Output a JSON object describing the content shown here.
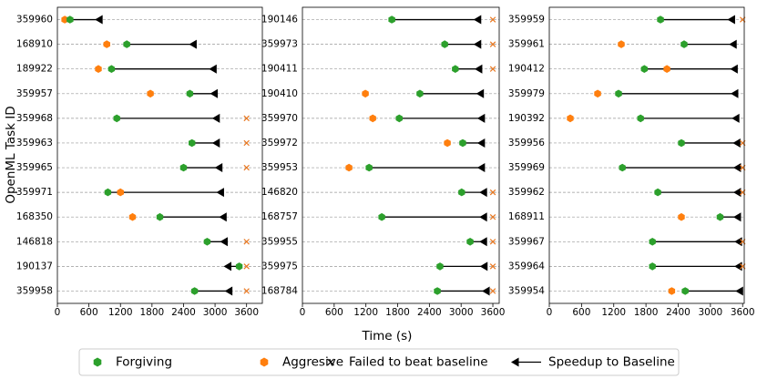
{
  "chart_data": {
    "type": "dumbbell",
    "xlabel": "Time (s)",
    "ylabel": "OpenML Task ID",
    "grid": true,
    "panels": [
      {
        "categories": [
          "359960",
          "168910",
          "189922",
          "359957",
          "359968",
          "359963",
          "359965",
          "359971",
          "168350",
          "146818",
          "190137",
          "359958"
        ],
        "xlim": [
          0,
          3900
        ],
        "xticks": [
          0,
          600,
          1200,
          1800,
          2400,
          3000,
          3600
        ]
      },
      {
        "categories": [
          "190146",
          "359973",
          "190411",
          "190410",
          "359970",
          "359972",
          "359953",
          "146820",
          "168757",
          "359955",
          "359975",
          "168784"
        ],
        "xlim": [
          0,
          3720
        ],
        "xticks": [
          0,
          600,
          1200,
          1800,
          2400,
          3000,
          3600
        ]
      },
      {
        "categories": [
          "359959",
          "359961",
          "190412",
          "359979",
          "190392",
          "359956",
          "359969",
          "359962",
          "168911",
          "359967",
          "359964",
          "359954"
        ],
        "xlim": [
          0,
          3630
        ],
        "xticks": [
          0,
          600,
          1200,
          1800,
          2400,
          3000,
          3600
        ]
      }
    ],
    "series": [
      {
        "name": "Forgiving",
        "color": "#2ca02c",
        "values": [
          [
            240,
            1320,
            1030,
            2520,
            1130,
            2560,
            2400,
            960,
            1950,
            2850,
            3460,
            2610
          ],
          [
            1690,
            2690,
            2890,
            2220,
            1830,
            3030,
            1260,
            3010,
            1500,
            3170,
            2600,
            2550
          ],
          [
            2070,
            2510,
            1770,
            1290,
            1700,
            2460,
            1360,
            2020,
            3180,
            1920,
            1920,
            2530
          ]
        ]
      },
      {
        "name": "Aggresive",
        "color": "#ff7f0e",
        "values": [
          [
            140,
            940,
            780,
            1770,
            null,
            null,
            null,
            1200,
            1430,
            null,
            null,
            null
          ],
          [
            null,
            null,
            null,
            1190,
            1330,
            2740,
            880,
            null,
            null,
            null,
            null,
            null
          ],
          [
            null,
            1340,
            2190,
            900,
            390,
            null,
            null,
            null,
            2460,
            null,
            null,
            2280
          ]
        ]
      },
      {
        "name": "Failed to beat baseline",
        "color": "#e8761e",
        "values": [
          [
            null,
            null,
            null,
            null,
            3600,
            3600,
            3600,
            null,
            null,
            3600,
            3600,
            3600
          ],
          [
            3600,
            3600,
            3600,
            null,
            null,
            null,
            null,
            3600,
            3600,
            3600,
            3600,
            3600
          ],
          [
            3600,
            null,
            null,
            null,
            null,
            3600,
            3600,
            3600,
            null,
            3600,
            3600,
            null
          ]
        ]
      },
      {
        "name": "Speedup to Baseline",
        "color": "#000000",
        "values": [
          [
            800,
            2590,
            2970,
            2990,
            3030,
            3030,
            3080,
            3110,
            3160,
            3180,
            3250,
            3270
          ],
          [
            3320,
            3320,
            3340,
            3370,
            3390,
            3390,
            3390,
            3430,
            3430,
            3430,
            3440,
            3480
          ],
          [
            3400,
            3430,
            3450,
            3460,
            3480,
            3500,
            3510,
            3510,
            3510,
            3530,
            3530,
            3550
          ]
        ]
      }
    ]
  }
}
